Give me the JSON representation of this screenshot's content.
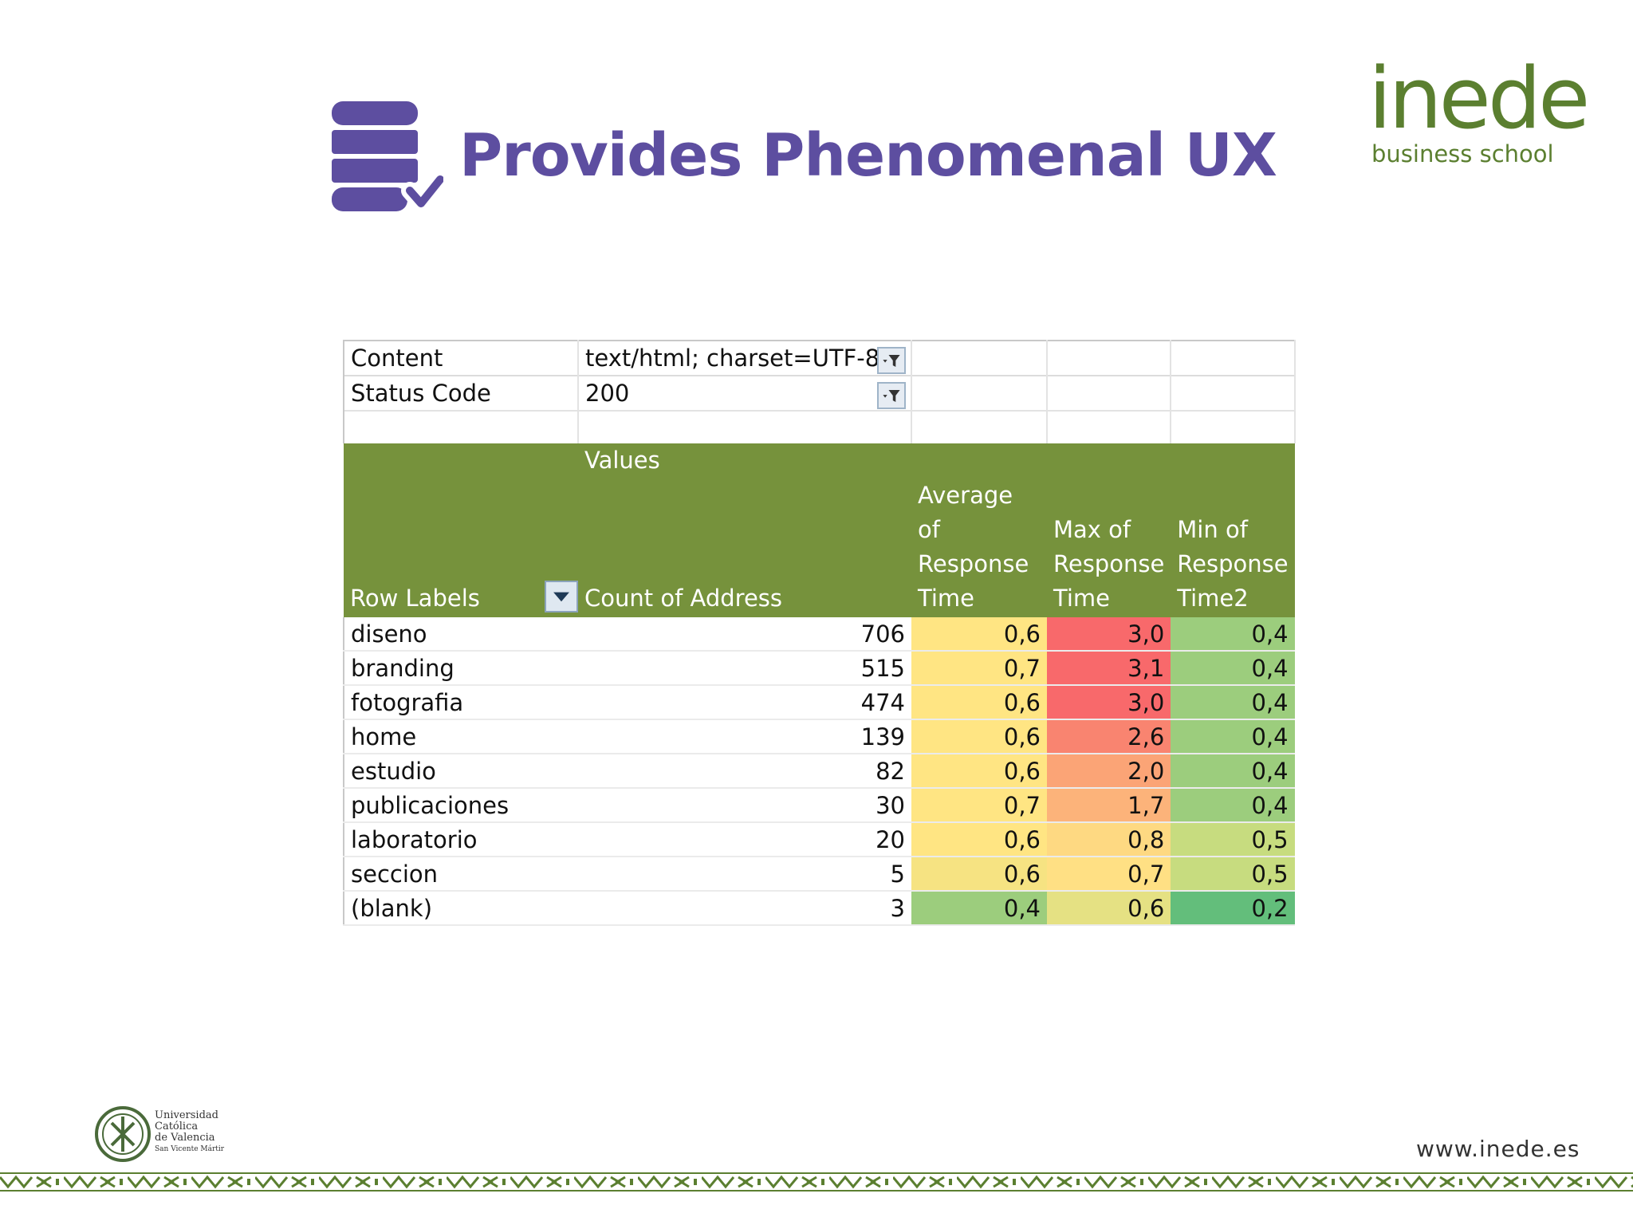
{
  "slide": {
    "title": "Provides Phenomenal UX",
    "logo_word": "inede",
    "logo_sub": "business school",
    "url": "www.inede.es",
    "university": {
      "line1": "Universidad",
      "line2": "Católica",
      "line3": "de Valencia",
      "line4": "San Vicente Mártir"
    }
  },
  "icons": {
    "title_icon": "database-check-icon",
    "filter": "filter-icon",
    "dropdown": "chevron-down-icon"
  },
  "colors": {
    "title": "#5d4ea0",
    "brand_green": "#5b7f30",
    "header_green": "#76923c"
  },
  "filters": [
    {
      "label": "Content",
      "value": "text/html; charset=UTF-8"
    },
    {
      "label": "Status Code",
      "value": "200"
    }
  ],
  "pivot": {
    "values_label": "Values",
    "row_labels_header": "Row Labels",
    "columns": [
      "Count of Address",
      "Average of Response Time",
      "Max of Response Time",
      "Min of Response Time2"
    ],
    "rows": [
      {
        "label": "diseno",
        "count": "706",
        "avg": "0,6",
        "max": "3,0",
        "min": "0,4",
        "colors": [
          "#ffe583",
          "#f8696b",
          "#9ccd7d"
        ]
      },
      {
        "label": "branding",
        "count": "515",
        "avg": "0,7",
        "max": "3,1",
        "min": "0,4",
        "colors": [
          "#ffe583",
          "#f8696b",
          "#9ccd7d"
        ]
      },
      {
        "label": "fotografia",
        "count": "474",
        "avg": "0,6",
        "max": "3,0",
        "min": "0,4",
        "colors": [
          "#ffe583",
          "#f8696b",
          "#9ccd7d"
        ]
      },
      {
        "label": "home",
        "count": "139",
        "avg": "0,6",
        "max": "2,6",
        "min": "0,4",
        "colors": [
          "#ffe583",
          "#f98470",
          "#9ccd7d"
        ]
      },
      {
        "label": "estudio",
        "count": "82",
        "avg": "0,6",
        "max": "2,0",
        "min": "0,4",
        "colors": [
          "#ffe583",
          "#fba476",
          "#9ccd7d"
        ]
      },
      {
        "label": "publicaciones",
        "count": "30",
        "avg": "0,7",
        "max": "1,7",
        "min": "0,4",
        "colors": [
          "#ffe583",
          "#fcb37a",
          "#9ccd7d"
        ]
      },
      {
        "label": "laboratorio",
        "count": "20",
        "avg": "0,6",
        "max": "0,8",
        "min": "0,5",
        "colors": [
          "#ffe583",
          "#fed982",
          "#c7dc7f"
        ]
      },
      {
        "label": "seccion",
        "count": "5",
        "avg": "0,6",
        "max": "0,7",
        "min": "0,5",
        "colors": [
          "#f6e382",
          "#ffe084",
          "#c7dc7f"
        ]
      },
      {
        "label": "(blank)",
        "count": "3",
        "avg": "0,4",
        "max": "0,6",
        "min": "0,2",
        "colors": [
          "#9ccd7d",
          "#e5e183",
          "#63be7b"
        ]
      }
    ]
  }
}
